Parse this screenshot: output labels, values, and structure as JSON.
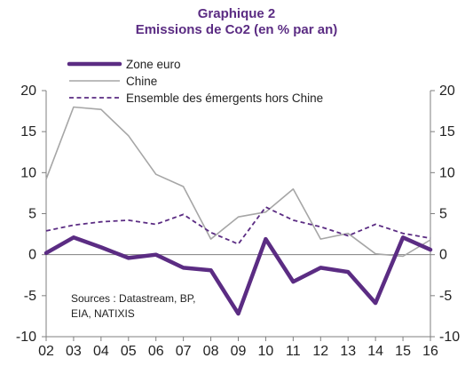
{
  "chart_data": {
    "type": "line",
    "title": "Graphique 2",
    "subtitle": "Emissions de Co2 (en % par an)",
    "categories": [
      "02",
      "03",
      "04",
      "05",
      "06",
      "07",
      "08",
      "09",
      "10",
      "11",
      "12",
      "13",
      "14",
      "15",
      "16"
    ],
    "ylim": [
      -10,
      20
    ],
    "yticks": [
      -10,
      -5,
      0,
      5,
      10,
      15,
      20
    ],
    "right_axis": true,
    "grid": false,
    "legend_position": "top-left",
    "series": [
      {
        "name": "Zone euro",
        "color": "#5b2c83",
        "style": "solid-thick",
        "values": [
          0.2,
          2.1,
          0.9,
          -0.4,
          0.0,
          -1.6,
          -1.9,
          -7.2,
          1.9,
          -3.3,
          -1.6,
          -2.1,
          -5.9,
          2.1,
          0.6
        ]
      },
      {
        "name": "Chine",
        "color": "#a6a6a6",
        "style": "solid",
        "values": [
          9.2,
          18.0,
          17.7,
          14.5,
          9.8,
          8.3,
          1.9,
          4.6,
          5.2,
          8.0,
          1.9,
          2.6,
          0.1,
          -0.2,
          1.8
        ]
      },
      {
        "name": "Ensemble des émergents hors Chine",
        "color": "#5b2c83",
        "style": "dashed",
        "values": [
          2.9,
          3.6,
          4.0,
          4.2,
          3.7,
          4.9,
          2.7,
          1.3,
          5.8,
          4.2,
          3.4,
          2.3,
          3.7,
          2.6,
          2.0
        ]
      }
    ],
    "annotation": [
      "Sources : Datastream, BP,",
      "EIA, NATIXIS"
    ]
  }
}
